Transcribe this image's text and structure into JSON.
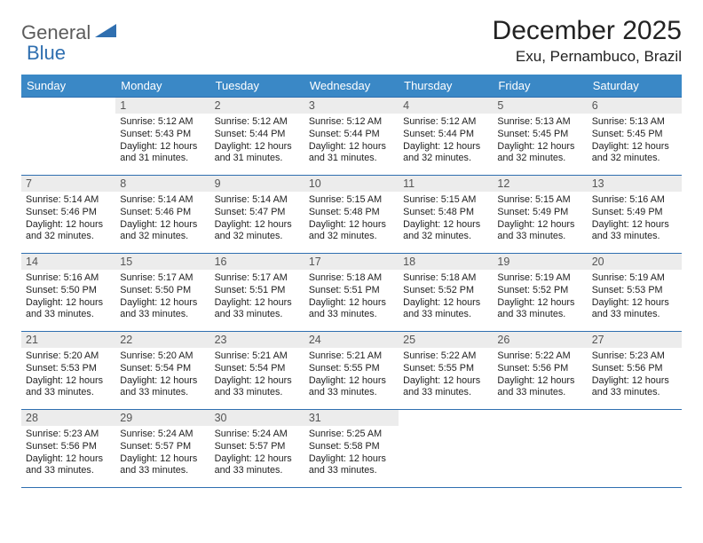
{
  "logo": {
    "text1": "General",
    "text2": "Blue"
  },
  "title": "December 2025",
  "location": "Exu, Pernambuco, Brazil",
  "colors": {
    "header_bg": "#3a88c6",
    "header_text": "#ffffff",
    "border": "#2f6fb0",
    "daynum_bg": "#ececec",
    "daynum_text": "#555555",
    "body_text": "#222222",
    "logo_gray": "#5c5c5c",
    "logo_blue": "#2f6fb0"
  },
  "weekdays": [
    "Sunday",
    "Monday",
    "Tuesday",
    "Wednesday",
    "Thursday",
    "Friday",
    "Saturday"
  ],
  "weeks": [
    [
      null,
      {
        "n": "1",
        "sr": "5:12 AM",
        "ss": "5:43 PM",
        "dl": "12 hours and 31 minutes."
      },
      {
        "n": "2",
        "sr": "5:12 AM",
        "ss": "5:44 PM",
        "dl": "12 hours and 31 minutes."
      },
      {
        "n": "3",
        "sr": "5:12 AM",
        "ss": "5:44 PM",
        "dl": "12 hours and 31 minutes."
      },
      {
        "n": "4",
        "sr": "5:12 AM",
        "ss": "5:44 PM",
        "dl": "12 hours and 32 minutes."
      },
      {
        "n": "5",
        "sr": "5:13 AM",
        "ss": "5:45 PM",
        "dl": "12 hours and 32 minutes."
      },
      {
        "n": "6",
        "sr": "5:13 AM",
        "ss": "5:45 PM",
        "dl": "12 hours and 32 minutes."
      }
    ],
    [
      {
        "n": "7",
        "sr": "5:14 AM",
        "ss": "5:46 PM",
        "dl": "12 hours and 32 minutes."
      },
      {
        "n": "8",
        "sr": "5:14 AM",
        "ss": "5:46 PM",
        "dl": "12 hours and 32 minutes."
      },
      {
        "n": "9",
        "sr": "5:14 AM",
        "ss": "5:47 PM",
        "dl": "12 hours and 32 minutes."
      },
      {
        "n": "10",
        "sr": "5:15 AM",
        "ss": "5:48 PM",
        "dl": "12 hours and 32 minutes."
      },
      {
        "n": "11",
        "sr": "5:15 AM",
        "ss": "5:48 PM",
        "dl": "12 hours and 32 minutes."
      },
      {
        "n": "12",
        "sr": "5:15 AM",
        "ss": "5:49 PM",
        "dl": "12 hours and 33 minutes."
      },
      {
        "n": "13",
        "sr": "5:16 AM",
        "ss": "5:49 PM",
        "dl": "12 hours and 33 minutes."
      }
    ],
    [
      {
        "n": "14",
        "sr": "5:16 AM",
        "ss": "5:50 PM",
        "dl": "12 hours and 33 minutes."
      },
      {
        "n": "15",
        "sr": "5:17 AM",
        "ss": "5:50 PM",
        "dl": "12 hours and 33 minutes."
      },
      {
        "n": "16",
        "sr": "5:17 AM",
        "ss": "5:51 PM",
        "dl": "12 hours and 33 minutes."
      },
      {
        "n": "17",
        "sr": "5:18 AM",
        "ss": "5:51 PM",
        "dl": "12 hours and 33 minutes."
      },
      {
        "n": "18",
        "sr": "5:18 AM",
        "ss": "5:52 PM",
        "dl": "12 hours and 33 minutes."
      },
      {
        "n": "19",
        "sr": "5:19 AM",
        "ss": "5:52 PM",
        "dl": "12 hours and 33 minutes."
      },
      {
        "n": "20",
        "sr": "5:19 AM",
        "ss": "5:53 PM",
        "dl": "12 hours and 33 minutes."
      }
    ],
    [
      {
        "n": "21",
        "sr": "5:20 AM",
        "ss": "5:53 PM",
        "dl": "12 hours and 33 minutes."
      },
      {
        "n": "22",
        "sr": "5:20 AM",
        "ss": "5:54 PM",
        "dl": "12 hours and 33 minutes."
      },
      {
        "n": "23",
        "sr": "5:21 AM",
        "ss": "5:54 PM",
        "dl": "12 hours and 33 minutes."
      },
      {
        "n": "24",
        "sr": "5:21 AM",
        "ss": "5:55 PM",
        "dl": "12 hours and 33 minutes."
      },
      {
        "n": "25",
        "sr": "5:22 AM",
        "ss": "5:55 PM",
        "dl": "12 hours and 33 minutes."
      },
      {
        "n": "26",
        "sr": "5:22 AM",
        "ss": "5:56 PM",
        "dl": "12 hours and 33 minutes."
      },
      {
        "n": "27",
        "sr": "5:23 AM",
        "ss": "5:56 PM",
        "dl": "12 hours and 33 minutes."
      }
    ],
    [
      {
        "n": "28",
        "sr": "5:23 AM",
        "ss": "5:56 PM",
        "dl": "12 hours and 33 minutes."
      },
      {
        "n": "29",
        "sr": "5:24 AM",
        "ss": "5:57 PM",
        "dl": "12 hours and 33 minutes."
      },
      {
        "n": "30",
        "sr": "5:24 AM",
        "ss": "5:57 PM",
        "dl": "12 hours and 33 minutes."
      },
      {
        "n": "31",
        "sr": "5:25 AM",
        "ss": "5:58 PM",
        "dl": "12 hours and 33 minutes."
      },
      null,
      null,
      null
    ]
  ],
  "labels": {
    "sunrise": "Sunrise:",
    "sunset": "Sunset:",
    "daylight": "Daylight:"
  }
}
